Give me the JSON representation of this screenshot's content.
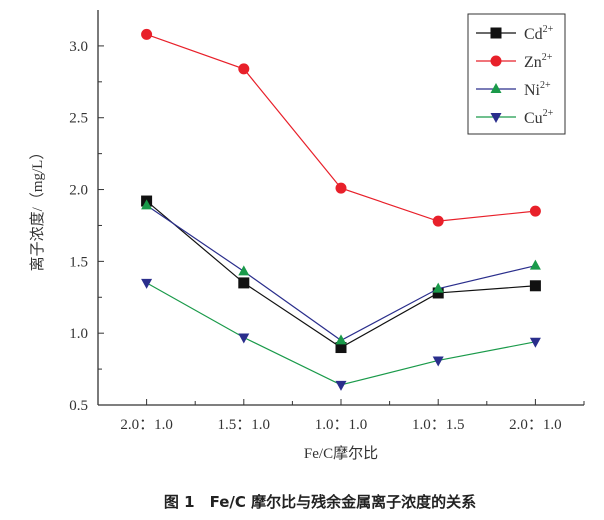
{
  "chart_data": {
    "type": "line",
    "title": "",
    "caption": "图 1　Fe/C 摩尔比与残余金属离子浓度的关系",
    "xlabel": "Fe/C摩尔比",
    "ylabel": "离子浓度/（mg/L）",
    "categories": [
      "2.0：1.0",
      "1.5：1.0",
      "1.0：1.0",
      "1.0：1.5",
      "2.0：1.0"
    ],
    "ylim": [
      0.5,
      3.25
    ],
    "yticks": [
      "0.5",
      "1.0",
      "1.5",
      "2.0",
      "2.5",
      "3.0"
    ],
    "grid": false,
    "legend_position": "top-right",
    "series": [
      {
        "name": "Cd",
        "sup": "2+",
        "values": [
          1.92,
          1.35,
          0.9,
          1.28,
          1.33
        ],
        "line": "#111111",
        "marker": "square",
        "marker_color": "#111111"
      },
      {
        "name": "Zn",
        "sup": "2+",
        "values": [
          3.08,
          2.84,
          2.01,
          1.78,
          1.85
        ],
        "line": "#e8202a",
        "marker": "circle",
        "marker_color": "#e8202a"
      },
      {
        "name": "Ni",
        "sup": "2+",
        "values": [
          1.89,
          1.43,
          0.95,
          1.31,
          1.47
        ],
        "line": "#2a2e8c",
        "marker": "triangle-up",
        "marker_color": "#1a9a4a"
      },
      {
        "name": "Cu",
        "sup": "2+",
        "values": [
          1.35,
          0.97,
          0.64,
          0.81,
          0.94
        ],
        "line": "#1a9a4a",
        "marker": "triangle-down",
        "marker_color": "#2a2e8c"
      }
    ]
  }
}
